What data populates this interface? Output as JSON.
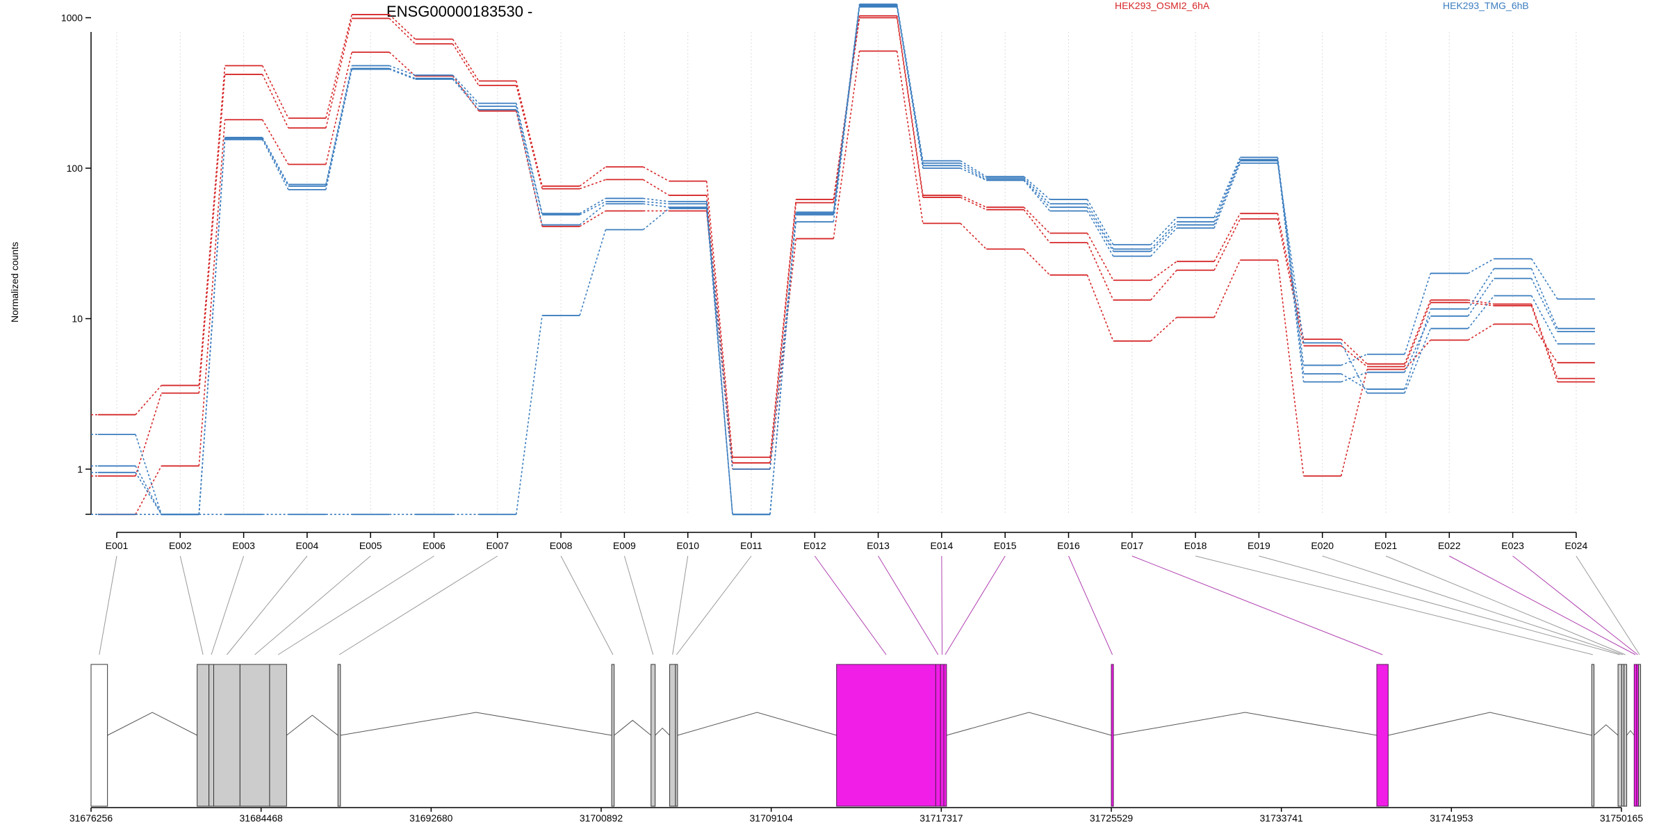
{
  "chart_data": {
    "type": "line",
    "title": "ENSG00000183530 -",
    "ylabel": "Normalized counts",
    "xlabel": "",
    "y_scale": "log",
    "ylim": [
      0.5,
      1500
    ],
    "y_ticks": [
      1,
      10,
      100,
      1000
    ],
    "y_tick_labels": [
      "1",
      "10",
      "100",
      "1000"
    ],
    "grid": "vertical dotted lines at each exon",
    "legend_placement": "top-right",
    "categories": [
      "E001",
      "E002",
      "E003",
      "E004",
      "E005",
      "E006",
      "E007",
      "E008",
      "E009",
      "E010",
      "E011",
      "E012",
      "E013",
      "E014",
      "E015",
      "E016",
      "E017",
      "E018",
      "E019",
      "E020",
      "E021",
      "E022",
      "E023",
      "E024"
    ],
    "groups": [
      {
        "name": "HEK293_OSMI2_6hA",
        "color": "#d62728"
      },
      {
        "name": "HEK293_TMG_6hB",
        "color": "#3b7dbf"
      }
    ],
    "series": [
      {
        "group": 0,
        "values": [
          2.3,
          3.6,
          480,
          215,
          1050,
          720,
          380,
          76,
          102,
          82,
          1.2,
          62,
          1030,
          66,
          55,
          37,
          18,
          24,
          50,
          7.3,
          5.0,
          13.3,
          12.5,
          4.0
        ]
      },
      {
        "group": 0,
        "values": [
          0.9,
          3.2,
          420,
          185,
          990,
          670,
          355,
          73,
          84,
          66,
          1.1,
          59,
          1000,
          64,
          53,
          32,
          13.3,
          21,
          46,
          6.6,
          4.8,
          12.8,
          12.2,
          3.8
        ]
      },
      {
        "group": 0,
        "values": [
          0.5,
          1.05,
          210,
          106,
          590,
          410,
          240,
          41,
          52,
          52,
          1.0,
          34,
          600,
          43,
          29,
          19.5,
          7.1,
          10.2,
          24.5,
          0.9,
          4.6,
          7.2,
          9.2,
          5.1
        ]
      },
      {
        "group": 1,
        "values": [
          1.7,
          0.5,
          160,
          78,
          480,
          415,
          270,
          50,
          63,
          60,
          0.5,
          51,
          1230,
          112,
          88,
          62,
          31,
          47,
          118,
          4.9,
          5.8,
          20,
          25,
          13.5
        ]
      },
      {
        "group": 1,
        "values": [
          1.05,
          0.5,
          158,
          76,
          460,
          395,
          258,
          49,
          60,
          58,
          0.5,
          50,
          1210,
          108,
          86,
          58,
          29,
          44,
          114,
          4.3,
          3.4,
          11.6,
          21.5,
          8.6
        ]
      },
      {
        "group": 1,
        "values": [
          0.95,
          0.5,
          155,
          72,
          455,
          390,
          245,
          42,
          58,
          55,
          1.0,
          44,
          1200,
          100,
          83,
          52,
          26,
          40,
          108,
          6.9,
          3.2,
          8.6,
          14.2,
          6.8
        ]
      },
      {
        "group": 1,
        "values": [
          0.5,
          0.5,
          0.5,
          0.5,
          0.5,
          0.5,
          0.5,
          10.5,
          39,
          54,
          0.5,
          49,
          1180,
          104,
          84,
          55,
          28,
          42,
          112,
          3.8,
          4.4,
          10.4,
          18.5,
          8.2
        ]
      }
    ],
    "gene_model": {
      "coord_ticks": [
        "31676256",
        "31684468",
        "31692680",
        "31700892",
        "31709104",
        "31717317",
        "31725529",
        "31733741",
        "31741953",
        "31750165"
      ],
      "tick_values": [
        31676256,
        31684468,
        31692680,
        31700892,
        31709104,
        31717317,
        31725529,
        31733741,
        31741953,
        31750165
      ],
      "range": [
        31676256,
        31750165
      ],
      "intron_color": "#555555",
      "highlight_color": "#f01ee6",
      "exons": [
        {
          "id": "E001",
          "start": 31676256,
          "end": 31677050,
          "highlight": false
        },
        {
          "id": "E002",
          "start": 31681380,
          "end": 31681950,
          "highlight": false
        },
        {
          "id": "E003",
          "start": 31681950,
          "end": 31682180,
          "highlight": false
        },
        {
          "id": "E004",
          "start": 31682180,
          "end": 31683450,
          "highlight": false
        },
        {
          "id": "E005",
          "start": 31683450,
          "end": 31684880,
          "highlight": false
        },
        {
          "id": "E006",
          "start": 31684880,
          "end": 31685700,
          "highlight": false
        },
        {
          "id": "E007",
          "start": 31688180,
          "end": 31688300,
          "highlight": false
        },
        {
          "id": "E008",
          "start": 31701400,
          "end": 31701520,
          "highlight": false
        },
        {
          "id": "E009",
          "start": 31703300,
          "end": 31703500,
          "highlight": false
        },
        {
          "id": "E010",
          "start": 31704200,
          "end": 31704480,
          "highlight": false
        },
        {
          "id": "E011",
          "start": 31704480,
          "end": 31704550,
          "highlight": false
        },
        {
          "id": "E012",
          "start": 31712260,
          "end": 31717050,
          "highlight": true
        },
        {
          "id": "E013",
          "start": 31717050,
          "end": 31717280,
          "highlight": true
        },
        {
          "id": "E014",
          "start": 31717280,
          "end": 31717440,
          "highlight": true
        },
        {
          "id": "E015",
          "start": 31717440,
          "end": 31717570,
          "highlight": true
        },
        {
          "id": "E016",
          "start": 31725530,
          "end": 31725630,
          "highlight": true
        },
        {
          "id": "E017",
          "start": 31738350,
          "end": 31738900,
          "highlight": true
        },
        {
          "id": "E018",
          "start": 31748730,
          "end": 31748840,
          "highlight": false
        },
        {
          "id": "E019",
          "start": 31750000,
          "end": 31750180,
          "highlight": false
        },
        {
          "id": "E020",
          "start": 31750180,
          "end": 31750290,
          "highlight": false
        },
        {
          "id": "E021",
          "start": 31750290,
          "end": 31750420,
          "highlight": false
        },
        {
          "id": "E022",
          "start": 31750780,
          "end": 31750900,
          "highlight": true
        },
        {
          "id": "E023",
          "start": 31750900,
          "end": 31750990,
          "highlight": true
        },
        {
          "id": "E024",
          "start": 31750990,
          "end": 31751060,
          "highlight": false
        }
      ]
    }
  }
}
